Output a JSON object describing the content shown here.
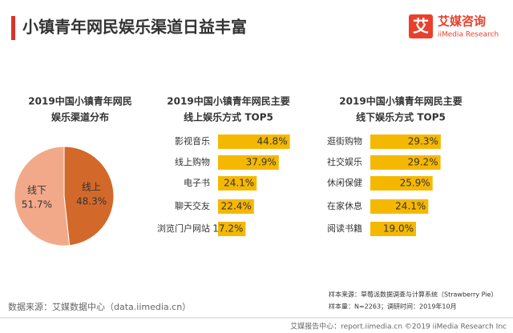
{
  "header": {
    "title": "小镇青年网民娱乐渠道日益丰富",
    "logo_mark": "艾",
    "logo_name": "艾媒咨询",
    "logo_sub": "iiMedia Research"
  },
  "chart_data": [
    {
      "type": "pie",
      "title": [
        "2019中国小镇青年网民",
        "娱乐渠道分布"
      ],
      "categories": [
        "线上",
        "线下"
      ],
      "values": [
        48.3,
        51.7
      ],
      "value_labels": [
        "48.3%",
        "51.7%"
      ],
      "colors": [
        "#d2692a",
        "#f2a98a"
      ]
    },
    {
      "type": "bar",
      "title": [
        "2019中国小镇青年网民主要",
        "线上娱乐方式 TOP5"
      ],
      "categories": [
        "影视音乐",
        "线上购物",
        "电子书",
        "聊天交友",
        "浏览门户网站"
      ],
      "values": [
        44.8,
        37.9,
        24.1,
        22.4,
        17.2
      ],
      "value_labels": [
        "44.8%",
        "37.9%",
        "24.1%",
        "22.4%",
        "17.2%"
      ],
      "color": "#f5b800",
      "xlim": [
        0,
        50
      ]
    },
    {
      "type": "bar",
      "title": [
        "2019中国小镇青年网民主要",
        "线下娱乐方式 TOP5"
      ],
      "categories": [
        "逛街购物",
        "社交娱乐",
        "休闲保健",
        "在家休息",
        "阅读书籍"
      ],
      "values": [
        29.3,
        29.2,
        25.9,
        24.1,
        19.0
      ],
      "value_labels": [
        "29.3%",
        "29.2%",
        "25.9%",
        "24.1%",
        "19.0%"
      ],
      "color": "#f5b800",
      "xlim": [
        0,
        30
      ]
    }
  ],
  "notes": [
    "样本来源：草莓派数据调查与计算系统（Strawberry Pie）",
    "样本量：N=2263；调研时间：2019年10月"
  ],
  "source": "数据来源：艾媒数据中心（data.iimedia.cn）",
  "footer": "艾媒报告中心：report.iimedia.cn  ©2019  iiMedia Research  Inc"
}
